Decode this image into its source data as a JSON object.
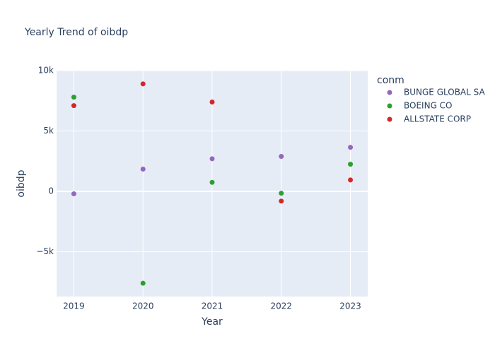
{
  "chart_data": {
    "type": "scatter",
    "title": "Yearly Trend of oibdp",
    "xlabel": "Year",
    "ylabel": "oibdp",
    "x": [
      2019,
      2020,
      2021,
      2022,
      2023
    ],
    "x_tick_labels": [
      "2019",
      "2020",
      "2021",
      "2022",
      "2023"
    ],
    "xlim": [
      2018.75,
      2023.25
    ],
    "ylim": [
      -8700,
      10000
    ],
    "y_tick_values": [
      -5000,
      0,
      5000,
      10000
    ],
    "y_tick_labels": [
      "−5k",
      "0",
      "5k",
      "10k"
    ],
    "grid": true,
    "legend": {
      "title": "conm",
      "placement": "right"
    },
    "series": [
      {
        "name": "BUNGE GLOBAL SA",
        "color": "#9467bd",
        "values": [
          -200,
          1850,
          2700,
          2900,
          3650
        ]
      },
      {
        "name": "BOEING CO",
        "color": "#2ca02c",
        "values": [
          7800,
          -7600,
          750,
          -150,
          2250
        ]
      },
      {
        "name": "ALLSTATE CORP",
        "color": "#d62728",
        "values": [
          7100,
          8900,
          7400,
          -800,
          950
        ]
      }
    ]
  }
}
